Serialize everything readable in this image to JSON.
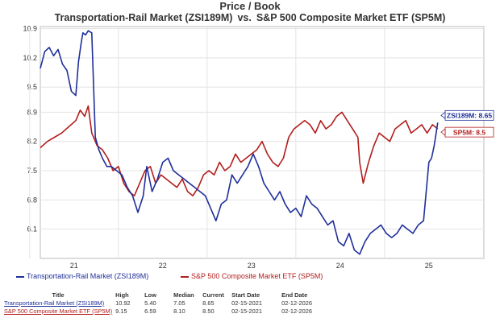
{
  "header": {
    "title": "Price / Book",
    "series_a": "Transportation-Rail Market (ZSI189M)",
    "vs": "vs.",
    "series_b": "S&P 500 Composite Market ETF (SP5M)"
  },
  "legend": {
    "a": "Transportation-Rail Market (ZSI189M)",
    "b": "S&P 500 Composite Market ETF (SP5M)"
  },
  "table": {
    "headers": [
      "Title",
      "High",
      "Low",
      "Median",
      "Current",
      "Start Date",
      "End Date"
    ],
    "rows": [
      {
        "title": "Transportation-Rail Market (ZSI189M)",
        "high": "10.92",
        "low": "5.40",
        "median": "7.05",
        "current": "8.65",
        "start": "02-15-2021",
        "end": "02-12-2026"
      },
      {
        "title": "S&P 500 Composite Market ETF (SP5M)",
        "high": "9.15",
        "low": "6.59",
        "median": "8.10",
        "current": "8.50",
        "start": "02-15-2021",
        "end": "02-12-2026"
      }
    ]
  },
  "chart_data": {
    "type": "line",
    "title": "Price / Book",
    "subtitle": "Transportation-Rail Market (ZSI189M) vs. S&P 500 Composite Market ETF (SP5M)",
    "xlabel": "",
    "ylabel": "",
    "x_ticks": [
      "21",
      "22",
      "23",
      "24",
      "25"
    ],
    "y_ticks": [
      "6.1",
      "6.8",
      "7.5",
      "8.2",
      "8.9",
      "9.5",
      "10.2",
      "10.9"
    ],
    "ylim": [
      5.4,
      10.95
    ],
    "xlim": [
      2021.12,
      2026.12
    ],
    "grid": true,
    "callouts": [
      {
        "series": "ZSI189M",
        "text": "ZSI189M: 8.65",
        "color": "#1f2f9a"
      },
      {
        "series": "SP5M",
        "text": "SP5M: 8.5",
        "color": "#b31d1d"
      }
    ],
    "colors": {
      "ZSI189M": "#1f2f9a",
      "SP5M": "#b31d1d"
    },
    "series": [
      {
        "name": "Transportation-Rail Market (ZSI189M)",
        "x": [
          2021.12,
          2021.17,
          2021.22,
          2021.27,
          2021.32,
          2021.37,
          2021.42,
          2021.47,
          2021.52,
          2021.55,
          2021.58,
          2021.6,
          2021.63,
          2021.66,
          2021.7,
          2021.74,
          2021.78,
          2021.82,
          2021.87,
          2021.92,
          2021.98,
          2022.04,
          2022.1,
          2022.16,
          2022.22,
          2022.28,
          2022.32,
          2022.38,
          2022.44,
          2022.5,
          2022.56,
          2022.62,
          2022.68,
          2022.74,
          2022.8,
          2022.86,
          2022.92,
          2022.98,
          2023.04,
          2023.1,
          2023.16,
          2023.22,
          2023.28,
          2023.34,
          2023.4,
          2023.46,
          2023.52,
          2023.58,
          2023.64,
          2023.7,
          2023.76,
          2023.82,
          2023.88,
          2023.94,
          2024.0,
          2024.06,
          2024.12,
          2024.18,
          2024.24,
          2024.3,
          2024.36,
          2024.42,
          2024.48,
          2024.54,
          2024.6,
          2024.66,
          2024.72,
          2024.78,
          2024.84,
          2024.9,
          2024.96,
          2025.02,
          2025.08,
          2025.14,
          2025.2,
          2025.26,
          2025.32,
          2025.38,
          2025.44,
          2025.47,
          2025.5,
          2025.53,
          2025.56,
          2025.6
        ],
        "y": [
          9.95,
          10.35,
          10.45,
          10.25,
          10.4,
          10.05,
          9.9,
          9.4,
          9.3,
          10.1,
          10.55,
          10.8,
          10.75,
          10.85,
          10.8,
          8.3,
          8.0,
          7.8,
          7.6,
          7.6,
          7.5,
          7.4,
          7.1,
          6.9,
          6.5,
          6.9,
          7.6,
          7.0,
          7.3,
          7.7,
          7.8,
          7.5,
          7.4,
          7.3,
          7.2,
          7.1,
          7.0,
          6.9,
          6.6,
          6.3,
          6.7,
          6.8,
          7.4,
          7.2,
          7.4,
          7.6,
          7.9,
          7.6,
          7.2,
          7.0,
          6.8,
          7.0,
          6.7,
          6.5,
          6.6,
          6.4,
          6.9,
          6.7,
          6.6,
          6.4,
          6.2,
          6.3,
          5.8,
          5.7,
          6.0,
          5.6,
          5.5,
          5.8,
          6.0,
          6.1,
          6.2,
          6.0,
          5.9,
          6.0,
          6.2,
          6.1,
          6.0,
          6.2,
          6.3,
          7.0,
          7.7,
          7.8,
          8.1,
          8.65
        ]
      },
      {
        "name": "S&P 500 Composite Market ETF (SP5M)",
        "x": [
          2021.12,
          2021.2,
          2021.28,
          2021.36,
          2021.44,
          2021.52,
          2021.57,
          2021.62,
          2021.66,
          2021.7,
          2021.76,
          2021.82,
          2021.88,
          2021.94,
          2022.0,
          2022.06,
          2022.12,
          2022.18,
          2022.24,
          2022.3,
          2022.36,
          2022.42,
          2022.48,
          2022.54,
          2022.6,
          2022.66,
          2022.72,
          2022.78,
          2022.84,
          2022.9,
          2022.96,
          2023.02,
          2023.08,
          2023.14,
          2023.2,
          2023.26,
          2023.32,
          2023.38,
          2023.44,
          2023.5,
          2023.56,
          2023.62,
          2023.68,
          2023.74,
          2023.8,
          2023.86,
          2023.92,
          2023.98,
          2024.04,
          2024.1,
          2024.16,
          2024.22,
          2024.28,
          2024.34,
          2024.4,
          2024.46,
          2024.52,
          2024.58,
          2024.64,
          2024.7,
          2024.72,
          2024.76,
          2024.82,
          2024.88,
          2024.94,
          2025.0,
          2025.06,
          2025.12,
          2025.18,
          2025.24,
          2025.3,
          2025.36,
          2025.42,
          2025.48,
          2025.54,
          2025.6
        ],
        "y": [
          8.05,
          8.2,
          8.3,
          8.4,
          8.55,
          8.7,
          8.95,
          8.8,
          9.05,
          8.4,
          8.1,
          8.0,
          7.8,
          7.5,
          7.6,
          7.2,
          7.0,
          6.9,
          7.2,
          7.5,
          7.6,
          7.2,
          7.4,
          7.3,
          7.2,
          7.1,
          7.3,
          7.0,
          6.9,
          7.1,
          7.4,
          7.5,
          7.4,
          7.7,
          7.5,
          7.6,
          7.9,
          7.7,
          7.8,
          7.9,
          8.0,
          8.2,
          7.9,
          7.7,
          7.6,
          7.8,
          8.3,
          8.5,
          8.6,
          8.7,
          8.6,
          8.4,
          8.7,
          8.5,
          8.6,
          8.8,
          8.9,
          8.7,
          8.5,
          8.3,
          7.7,
          7.2,
          7.7,
          8.1,
          8.4,
          8.3,
          8.2,
          8.5,
          8.6,
          8.7,
          8.4,
          8.5,
          8.6,
          8.4,
          8.6,
          8.5
        ]
      }
    ]
  }
}
